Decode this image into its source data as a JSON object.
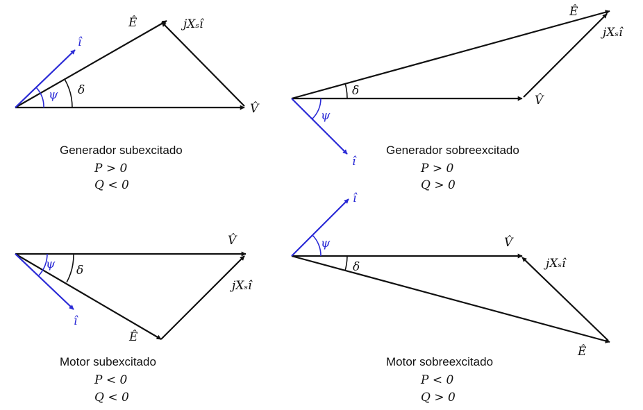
{
  "colors": {
    "voltage": "#111111",
    "current": "#2b2bd6"
  },
  "labels": {
    "E": "Ê",
    "V": "V̂",
    "I": "î",
    "jXsI": "jXₛî",
    "psi": "ψ",
    "delta": "δ"
  },
  "panels": [
    {
      "id": "gen-sub",
      "title": "Generador subexcitado",
      "P": "P > 0",
      "Q": "Q < 0"
    },
    {
      "id": "gen-sob",
      "title": "Generador sobreexcitado",
      "P": "P > 0",
      "Q": "Q > 0"
    },
    {
      "id": "mot-sub",
      "title": "Motor subexcitado",
      "P": "P < 0",
      "Q": "Q < 0"
    },
    {
      "id": "mot-sob",
      "title": "Motor sobreexcitado",
      "P": "P < 0",
      "Q": "Q > 0"
    }
  ]
}
